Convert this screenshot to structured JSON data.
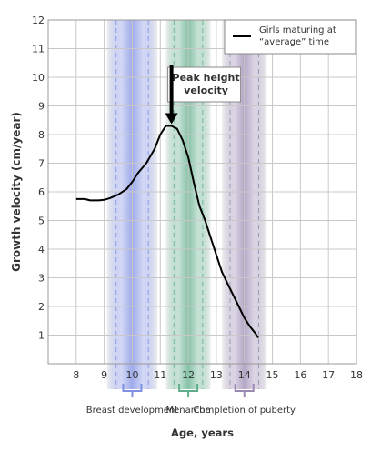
{
  "chart_data": {
    "type": "line",
    "xlabel": "Age, years",
    "ylabel": "Growth velocity (cm/year)",
    "xlim": [
      7,
      18
    ],
    "ylim": [
      0,
      12
    ],
    "x_ticks": [
      8,
      9,
      10,
      11,
      12,
      13,
      14,
      15,
      16,
      17,
      18
    ],
    "y_ticks": [
      1,
      2,
      3,
      4,
      5,
      6,
      7,
      8,
      9,
      10,
      11,
      12
    ],
    "grid": true,
    "legend": {
      "position": "top-right",
      "entries": [
        "Girls maturing at “average” time"
      ]
    },
    "series": [
      {
        "name": "Girls maturing at “average” time",
        "color": "#000000",
        "x": [
          8.0,
          8.3,
          8.5,
          8.8,
          9.0,
          9.2,
          9.5,
          9.8,
          10.0,
          10.2,
          10.5,
          10.8,
          11.0,
          11.2,
          11.4,
          11.6,
          11.8,
          12.0,
          12.2,
          12.4,
          12.6,
          12.8,
          13.0,
          13.2,
          13.4,
          13.6,
          13.8,
          14.0,
          14.2,
          14.4,
          14.5
        ],
        "y": [
          5.75,
          5.75,
          5.7,
          5.7,
          5.72,
          5.78,
          5.9,
          6.1,
          6.35,
          6.65,
          7.0,
          7.5,
          8.0,
          8.3,
          8.3,
          8.2,
          7.8,
          7.2,
          6.3,
          5.5,
          5.0,
          4.4,
          3.8,
          3.2,
          2.8,
          2.4,
          2.0,
          1.6,
          1.3,
          1.05,
          0.9
        ]
      }
    ],
    "annotations": [
      {
        "text_lines": [
          "Peak height",
          "velocity"
        ],
        "x": 11.4,
        "y": 8.3
      }
    ],
    "bands": [
      {
        "center": 10,
        "halfwidth": 0.9,
        "color": "#7f8fe3",
        "label": "Breast development"
      },
      {
        "center": 12,
        "halfwidth": 0.8,
        "color": "#5fae8a",
        "label": "Menarche"
      },
      {
        "center": 14,
        "halfwidth": 0.8,
        "color": "#9a88b2",
        "label": "Completion of puberty"
      }
    ]
  }
}
